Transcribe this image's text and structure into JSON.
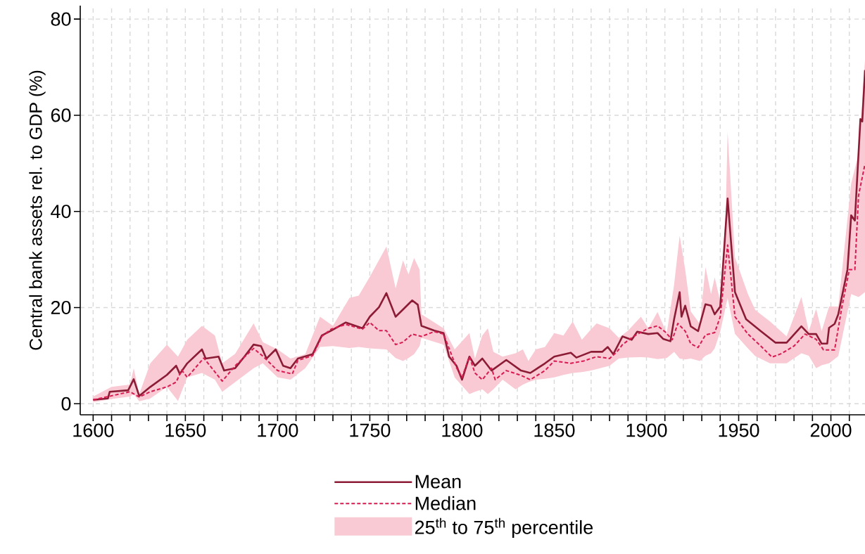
{
  "chart_data": {
    "type": "line",
    "ylabel": "Central bank assets rel. to GDP (%)",
    "xlim": [
      1593,
      2018.5
    ],
    "ylim": [
      -2.3,
      82.8
    ],
    "xticks": [
      1600,
      {
        "value": 1610,
        "label": null
      },
      {
        "value": 1620,
        "label": null
      },
      {
        "value": 1630,
        "label": null
      },
      {
        "value": 1640,
        "label": null
      },
      1650,
      {
        "value": 1660,
        "label": null
      },
      {
        "value": 1670,
        "label": null
      },
      {
        "value": 1680,
        "label": null
      },
      {
        "value": 1690,
        "label": null
      },
      1700,
      {
        "value": 1710,
        "label": null
      },
      {
        "value": 1720,
        "label": null
      },
      {
        "value": 1730,
        "label": null
      },
      {
        "value": 1740,
        "label": null
      },
      1750,
      {
        "value": 1760,
        "label": null
      },
      {
        "value": 1770,
        "label": null
      },
      {
        "value": 1780,
        "label": null
      },
      {
        "value": 1790,
        "label": null
      },
      1800,
      {
        "value": 1810,
        "label": null
      },
      {
        "value": 1820,
        "label": null
      },
      {
        "value": 1830,
        "label": null
      },
      {
        "value": 1840,
        "label": null
      },
      1850,
      {
        "value": 1860,
        "label": null
      },
      {
        "value": 1870,
        "label": null
      },
      {
        "value": 1880,
        "label": null
      },
      {
        "value": 1890,
        "label": null
      },
      1900,
      {
        "value": 1910,
        "label": null
      },
      {
        "value": 1920,
        "label": null
      },
      {
        "value": 1930,
        "label": null
      },
      {
        "value": 1940,
        "label": null
      },
      1950,
      {
        "value": 1960,
        "label": null
      },
      {
        "value": 1970,
        "label": null
      },
      {
        "value": 1980,
        "label": null
      },
      {
        "value": 1990,
        "label": null
      },
      2000,
      {
        "value": 2010,
        "label": null
      }
    ],
    "yticks": [
      0,
      20,
      40,
      60,
      80
    ],
    "grid": true,
    "legend": "bottom",
    "series": [
      {
        "name": "Mean",
        "color": "#8c1c35",
        "line_style": "solid",
        "x": [
          1600,
          1608,
          1609,
          1619,
          1622,
          1625,
          1631,
          1640,
          1645,
          1647,
          1651,
          1659,
          1661,
          1668,
          1671,
          1677,
          1682,
          1687,
          1691,
          1694,
          1699,
          1703,
          1707,
          1711,
          1719,
          1724,
          1729,
          1737,
          1746,
          1750,
          1755,
          1759,
          1764,
          1768,
          1773,
          1776,
          1778,
          1785,
          1790,
          1793,
          1797,
          1800,
          1804,
          1807,
          1811,
          1816,
          1824,
          1832,
          1837,
          1845,
          1850,
          1859,
          1862,
          1870,
          1876,
          1879,
          1882,
          1887,
          1892,
          1895,
          1901,
          1906,
          1909,
          1913,
          1915,
          1918,
          1919,
          1921,
          1924,
          1928,
          1932,
          1935,
          1937,
          1940,
          1944,
          1948,
          1954,
          1962,
          1970,
          1976,
          1984,
          1988,
          1992,
          1995,
          1998,
          1999,
          2002,
          2004,
          2009,
          2011,
          2013,
          2016,
          2017,
          2018.5
        ],
        "values": [
          0.8,
          1.1,
          2.5,
          2.8,
          5.1,
          1.6,
          3.5,
          6,
          7.9,
          6.2,
          8.4,
          11.3,
          9.4,
          9.8,
          6.9,
          7.4,
          9.8,
          12.3,
          12.0,
          9.4,
          11.3,
          7.9,
          7.4,
          9.4,
          10.3,
          14.2,
          15.2,
          16.9,
          15.7,
          18.1,
          20.1,
          23.0,
          18.1,
          19.6,
          21.5,
          20.6,
          16.2,
          15.2,
          14.7,
          9.8,
          7.9,
          5.0,
          9.8,
          7.9,
          9.4,
          6.9,
          9.1,
          6.9,
          6.4,
          8.4,
          9.8,
          10.6,
          9.6,
          10.8,
          10.8,
          11.8,
          10.3,
          14.0,
          13.3,
          15.0,
          14.5,
          14.7,
          13.5,
          13.0,
          17.6,
          23.2,
          18.1,
          20.4,
          16.1,
          15.1,
          20.7,
          20.4,
          18.6,
          20.2,
          42.7,
          23.2,
          17.6,
          15.1,
          12.7,
          12.7,
          16.1,
          14.5,
          14.5,
          12.5,
          12.5,
          15.8,
          16.6,
          18.6,
          27.9,
          39.2,
          38.1,
          59.2,
          58.7,
          69.4
        ]
      },
      {
        "name": "Median",
        "color": "#d81b50",
        "line_style": "dashed",
        "x": [
          1600,
          1620,
          1625,
          1631,
          1640,
          1645,
          1648,
          1651,
          1660,
          1670,
          1677,
          1687,
          1692,
          1700,
          1708,
          1711,
          1719,
          1724,
          1729,
          1737,
          1746,
          1750,
          1755,
          1759,
          1764,
          1768,
          1773,
          1778,
          1785,
          1790,
          1797,
          1800,
          1804,
          1807,
          1811,
          1816,
          1818,
          1824,
          1832,
          1837,
          1845,
          1850,
          1859,
          1866,
          1873,
          1880,
          1884,
          1887,
          1893,
          1901,
          1906,
          1910,
          1914,
          1917,
          1921,
          1924,
          1928,
          1932,
          1937,
          1940,
          1944,
          1948,
          1955,
          1962,
          1968,
          1973,
          1980,
          1986,
          1992,
          1996,
          2002,
          2006,
          2010,
          2013,
          2015,
          2018.5
        ],
        "values": [
          0.8,
          2.5,
          1.4,
          2.5,
          3.5,
          4.5,
          7.0,
          5.5,
          9.5,
          4.7,
          7.9,
          11.5,
          9.9,
          6.9,
          6.2,
          9.0,
          10.0,
          14.0,
          15.5,
          16.5,
          15.5,
          16.9,
          15.2,
          15.2,
          12.3,
          12.8,
          14.5,
          14.0,
          15.0,
          14.5,
          7.5,
          5.5,
          9.8,
          6.4,
          5.0,
          7.4,
          5.0,
          6.9,
          5.9,
          5.0,
          6.9,
          8.9,
          8.4,
          8.9,
          9.8,
          9.4,
          10.8,
          12.3,
          14.0,
          15.7,
          16.2,
          15.0,
          13.3,
          16.7,
          15.1,
          12.5,
          11.7,
          14.3,
          14.8,
          18.1,
          33.0,
          18.1,
          14.5,
          12.0,
          9.7,
          10.4,
          12.0,
          14.5,
          13.4,
          11.2,
          11.2,
          20.2,
          27.9,
          27.9,
          43.3,
          49.9
        ]
      },
      {
        "name": "25$^{th}$ to 75$^{th}$ percentile",
        "type": "line",
        "color": "#f9c9d4",
        "x": [
          1600,
          1610,
          1620,
          1622,
          1625,
          1631,
          1640,
          1646,
          1651,
          1659,
          1666,
          1670,
          1677,
          1687,
          1692,
          1700,
          1707,
          1715,
          1723,
          1730,
          1739,
          1744,
          1750,
          1759,
          1764,
          1768,
          1771,
          1774,
          1777,
          1778,
          1790,
          1796,
          1804,
          1807,
          1811,
          1814,
          1817,
          1822,
          1829,
          1833,
          1836,
          1840,
          1845,
          1850,
          1855,
          1860,
          1865,
          1870,
          1873,
          1880,
          1885,
          1890,
          1897,
          1901,
          1906,
          1911,
          1915,
          1918,
          1921,
          1924,
          1929,
          1932,
          1935,
          1937,
          1940,
          1943,
          1944,
          1948,
          1955,
          1959,
          1967,
          1976,
          1984,
          1988,
          1992,
          1995,
          1999,
          2004,
          2011,
          2015,
          2018.5
        ],
        "values": [
          null,
          null,
          null,
          null,
          null,
          null,
          null,
          null,
          null,
          null,
          null,
          null,
          null,
          null,
          null,
          null,
          null,
          null,
          null,
          null,
          null,
          null,
          null,
          null,
          null,
          null,
          null,
          null,
          null,
          null,
          null,
          null,
          null,
          null,
          null,
          null,
          null,
          null,
          null,
          null,
          null,
          null,
          null,
          null,
          null,
          null,
          null,
          null,
          null,
          null,
          null,
          null,
          null,
          null,
          null,
          null,
          null,
          null,
          null,
          null,
          null,
          null,
          null,
          null,
          null,
          null,
          null,
          null,
          null,
          null,
          null,
          null,
          null,
          null,
          null,
          null,
          null,
          null,
          null,
          null,
          null
        ],
        "lower": [
          0.3,
          1.0,
          1.5,
          2.0,
          0.5,
          1.1,
          3.5,
          0.6,
          5.5,
          6.4,
          5.0,
          2.5,
          4.5,
          7.4,
          8.4,
          5.5,
          5.0,
          7.4,
          11.8,
          12.0,
          11.6,
          11.8,
          11.5,
          11.3,
          9.5,
          8.9,
          9.5,
          10.3,
          12.0,
          13.7,
          12.3,
          5.5,
          2.0,
          2.5,
          3.0,
          2.0,
          3.0,
          5.0,
          3.0,
          4.0,
          4.5,
          5.0,
          5.2,
          5.5,
          6.0,
          6.4,
          6.6,
          6.9,
          7.2,
          7.9,
          9.4,
          9.6,
          9.7,
          9.6,
          9.3,
          9.5,
          10.8,
          9.4,
          9.2,
          9.4,
          8.9,
          10.0,
          10.5,
          11.5,
          15.0,
          20.2,
          22.0,
          14.5,
          11.5,
          9.9,
          8.4,
          8.4,
          10.5,
          10.0,
          7.4,
          8.0,
          8.4,
          9.9,
          22.8,
          22.2,
          23.2
        ],
        "upper": [
          1.5,
          3.5,
          4.0,
          7.4,
          2.0,
          8.4,
          12.3,
          9.8,
          13.3,
          16.2,
          14.2,
          8.4,
          10.4,
          16.7,
          12.8,
          11.3,
          9.4,
          10.3,
          18.1,
          16.2,
          22.0,
          22.5,
          26.4,
          32.7,
          24.0,
          29.8,
          26.9,
          30.3,
          27.9,
          18.6,
          15.7,
          11.3,
          14.7,
          9.4,
          14.2,
          15.7,
          10.8,
          9.8,
          10.5,
          11.3,
          8.9,
          11.3,
          11.8,
          14.7,
          14.2,
          17.1,
          13.3,
          15.5,
          16.7,
          15.7,
          13.7,
          15.2,
          18.1,
          15.7,
          19.1,
          14.7,
          24.8,
          35.0,
          27.9,
          19.2,
          16.6,
          28.4,
          22.8,
          26.3,
          21.2,
          40.0,
          56.6,
          30.4,
          22.8,
          19.5,
          17.1,
          14.0,
          22.2,
          15.1,
          19.7,
          15.1,
          20.2,
          20.2,
          45.8,
          52.0,
          71.5
        ]
      }
    ]
  }
}
